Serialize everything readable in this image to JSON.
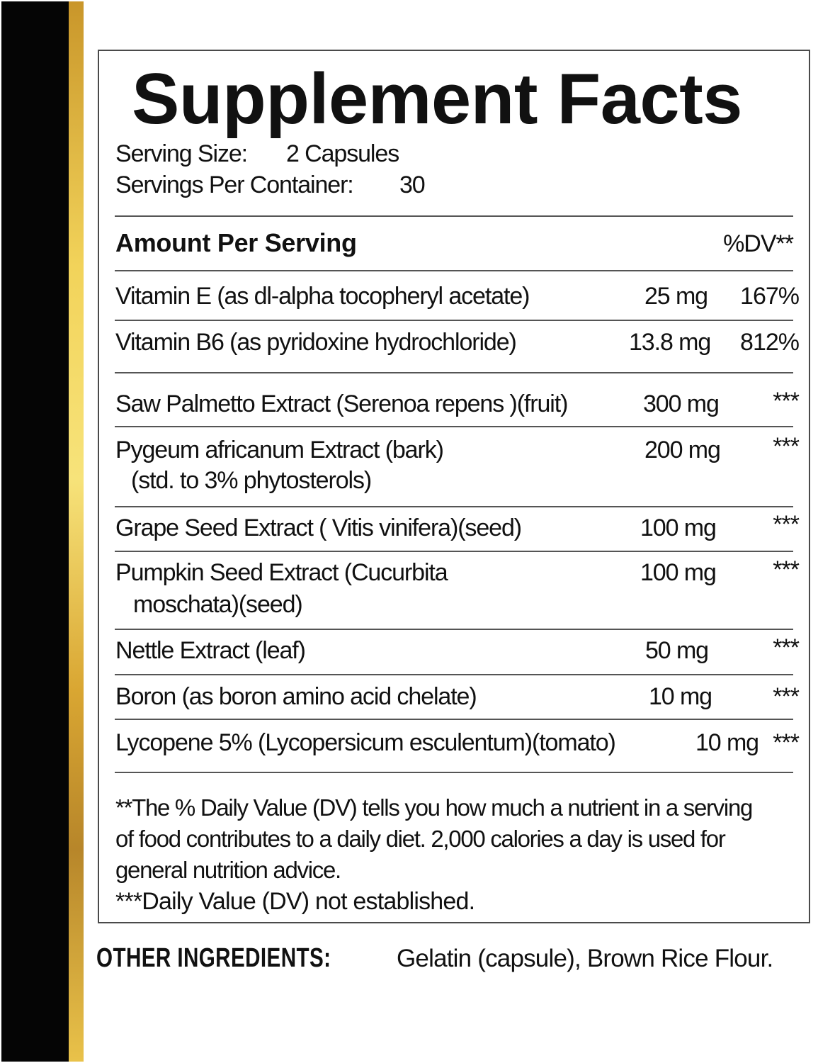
{
  "colors": {
    "left_bar": "#050505",
    "gold_stripe": "#e9c24a",
    "text": "#111111",
    "rules": "#555555"
  },
  "title": "Supplement Facts",
  "serving_size_label": "Serving Size:",
  "serving_size_value": "2 Capsules",
  "servings_per_container_label": "Servings Per Container:",
  "servings_per_container_value": "30",
  "header": {
    "amount": "Amount Per Serving",
    "dv": "%DV**"
  },
  "ingredients": [
    {
      "name": "Vitamin E (as dl-alpha tocopheryl acetate)",
      "amount": "25 mg",
      "dv": "167%"
    },
    {
      "name": "Vitamin B6 (as pyridoxine hydrochloride)",
      "amount": "13.8 mg",
      "dv": "812%"
    },
    {
      "name": "Saw Palmetto Extract (Serenoa repens )(fruit)",
      "amount": "300 mg",
      "dv": "***"
    },
    {
      "name": "Pygeum africanum  Extract (bark)",
      "name2": "(std. to 3% phytosterols)",
      "amount": "200 mg",
      "dv": "***"
    },
    {
      "name": "Grape Seed Extract ( Vitis vinifera)(seed)",
      "amount": "100 mg",
      "dv": "***"
    },
    {
      "name": "Pumpkin Seed Extract (Cucurbita",
      "name2": "moschata)(seed)",
      "amount": "100 mg",
      "dv": "***"
    },
    {
      "name": "Nettle Extract (leaf)",
      "amount": "50 mg",
      "dv": "***"
    },
    {
      "name": "Boron (as boron amino acid chelate)",
      "amount": "10 mg",
      "dv": "***"
    },
    {
      "name": "Lycopene 5% (Lycopersicum esculentum)(tomato)",
      "amount": "10 mg",
      "dv": "***"
    }
  ],
  "footnotes": [
    "**The % Daily Value (DV) tells you how much a nutrient in a serving",
    "of food contributes to a daily diet. 2,000 calories a day is used for",
    "general nutrition advice.",
    "***Daily Value (DV) not established."
  ],
  "other_ingredients": {
    "label": "OTHER INGREDIENTS:",
    "text": "Gelatin (capsule), Brown Rice Flour."
  }
}
